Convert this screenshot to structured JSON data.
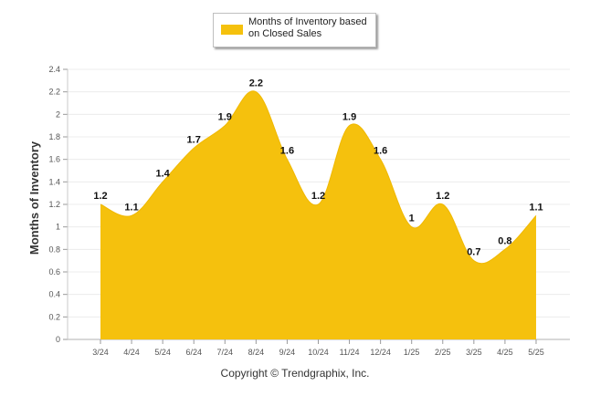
{
  "chart_data": {
    "type": "area",
    "categories": [
      "3/24",
      "4/24",
      "5/24",
      "6/24",
      "7/24",
      "8/24",
      "9/24",
      "10/24",
      "11/24",
      "12/24",
      "1/25",
      "2/25",
      "3/25",
      "4/25",
      "5/25"
    ],
    "series": [
      {
        "name": "Months of Inventory based on Closed Sales",
        "values": [
          1.2,
          1.1,
          1.4,
          1.7,
          1.9,
          2.2,
          1.6,
          1.2,
          1.9,
          1.6,
          1,
          1.2,
          0.7,
          0.8,
          1.1
        ]
      }
    ],
    "data_labels": [
      "1.2",
      "1.1",
      "1.4",
      "1.7",
      "1.9",
      "2.2",
      "1.6",
      "1.2",
      "1.9",
      "1.6",
      "1",
      "1.2",
      "0.7",
      "0.8",
      "1.1"
    ],
    "ylabel": "Months of Inventory",
    "xlabel": "",
    "ylim": [
      0,
      2.4
    ],
    "yticks": [
      "0",
      "0.2",
      "0.4",
      "0.6",
      "0.8",
      "1",
      "1.2",
      "1.4",
      "1.6",
      "1.8",
      "2",
      "2.2",
      "2.4"
    ],
    "grid": true,
    "legend_position": "top-center",
    "color": "#f5c10d"
  },
  "footer": {
    "copyright": "Copyright © Trendgraphix, Inc."
  }
}
